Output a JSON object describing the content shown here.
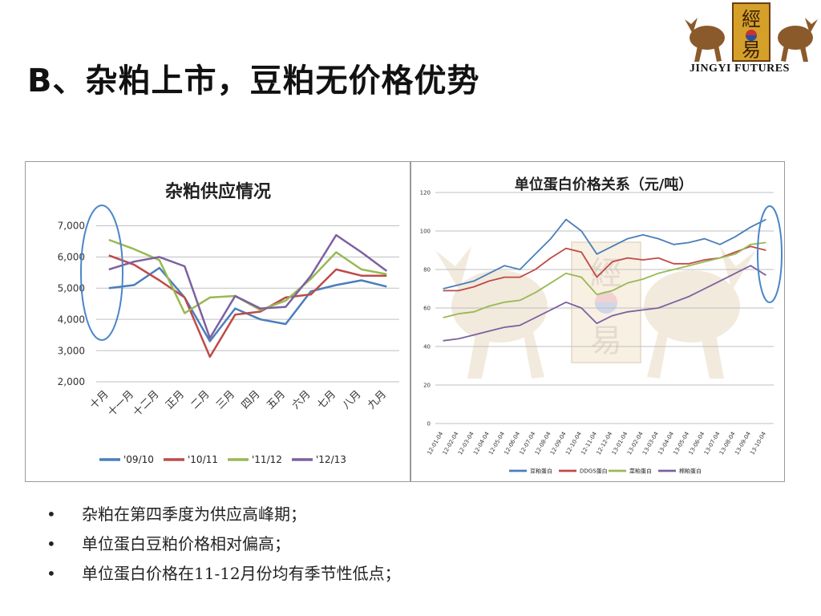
{
  "slide": {
    "title": "B、杂粕上市，豆粕无价格优势",
    "logo_text": "JINGYI FUTURES",
    "logo_glyphs": [
      "經",
      "易"
    ],
    "bullets": [
      "杂粕在第四季度为供应高峰期；",
      "单位蛋白豆粕价格相对偏高；",
      "单位蛋白价格在11-12月份均有季节性低点；"
    ]
  },
  "colors": {
    "series_1": "#4a7ebb",
    "series_2": "#be4b48",
    "series_3": "#98b954",
    "series_4": "#7d60a0",
    "highlight_ellipse": "#4a86c8"
  },
  "chart_data": [
    {
      "type": "line",
      "title": "杂粕供应情况",
      "categories": [
        "十月",
        "十一月",
        "十二月",
        "正月",
        "二月",
        "三月",
        "四月",
        "五月",
        "六月",
        "七月",
        "八月",
        "九月"
      ],
      "ylim": [
        2000,
        7500
      ],
      "yticks": [
        2000,
        3000,
        4000,
        5000,
        6000,
        7000
      ],
      "ytick_labels": [
        "2,000",
        "3,000",
        "4,000",
        "5,000",
        "6,000",
        "7,000"
      ],
      "grid": true,
      "legend": "bottom",
      "series": [
        {
          "name": "'09/10",
          "values": [
            5000,
            5100,
            5650,
            4700,
            3300,
            4350,
            4000,
            3850,
            4900,
            5100,
            5250,
            5050
          ]
        },
        {
          "name": "'10/11",
          "values": [
            6050,
            5750,
            5250,
            4700,
            2800,
            4150,
            4250,
            4700,
            4800,
            5600,
            5400,
            5400
          ]
        },
        {
          "name": "'11/12",
          "values": [
            6550,
            6250,
            5900,
            4200,
            4700,
            4750,
            4300,
            4600,
            5300,
            6150,
            5600,
            5450
          ]
        },
        {
          "name": "'12/13",
          "values": [
            5600,
            5850,
            6000,
            5700,
            3400,
            4750,
            4350,
            4400,
            5400,
            6700,
            6150,
            5550
          ]
        }
      ]
    },
    {
      "type": "line",
      "title": "单位蛋白价格关系（元/吨）",
      "categories": [
        "12-01-04",
        "12-02-04",
        "12-03-04",
        "12-04-04",
        "12-05-04",
        "12-06-04",
        "12-07-04",
        "12-08-04",
        "12-09-04",
        "12-10-04",
        "12-11-04",
        "12-12-04",
        "13-01-04",
        "13-02-04",
        "13-03-04",
        "13-04-04",
        "13-05-04",
        "13-06-04",
        "13-07-04",
        "13-08-04",
        "13-09-04",
        "13-10-04"
      ],
      "ylim": [
        0,
        120
      ],
      "yticks": [
        0,
        20,
        40,
        60,
        80,
        100,
        120
      ],
      "grid": true,
      "legend": "bottom",
      "series": [
        {
          "name": "豆粕蛋白",
          "values": [
            70,
            72,
            74,
            78,
            82,
            80,
            88,
            96,
            106,
            100,
            88,
            92,
            96,
            98,
            96,
            93,
            94,
            96,
            93,
            97,
            102,
            106
          ]
        },
        {
          "name": "DDGS蛋白",
          "values": [
            69,
            69,
            71,
            74,
            76,
            76,
            80,
            86,
            91,
            89,
            76,
            84,
            86,
            85,
            86,
            83,
            83,
            85,
            86,
            89,
            92,
            90
          ]
        },
        {
          "name": "菜粕蛋白",
          "values": [
            55,
            57,
            58,
            61,
            63,
            64,
            68,
            73,
            78,
            76,
            67,
            69,
            73,
            75,
            78,
            80,
            82,
            84,
            86,
            88,
            93,
            94
          ]
        },
        {
          "name": "棉粕蛋白",
          "values": [
            43,
            44,
            46,
            48,
            50,
            51,
            55,
            59,
            63,
            60,
            52,
            56,
            58,
            59,
            60,
            63,
            66,
            70,
            74,
            78,
            82,
            77
          ]
        }
      ]
    }
  ]
}
